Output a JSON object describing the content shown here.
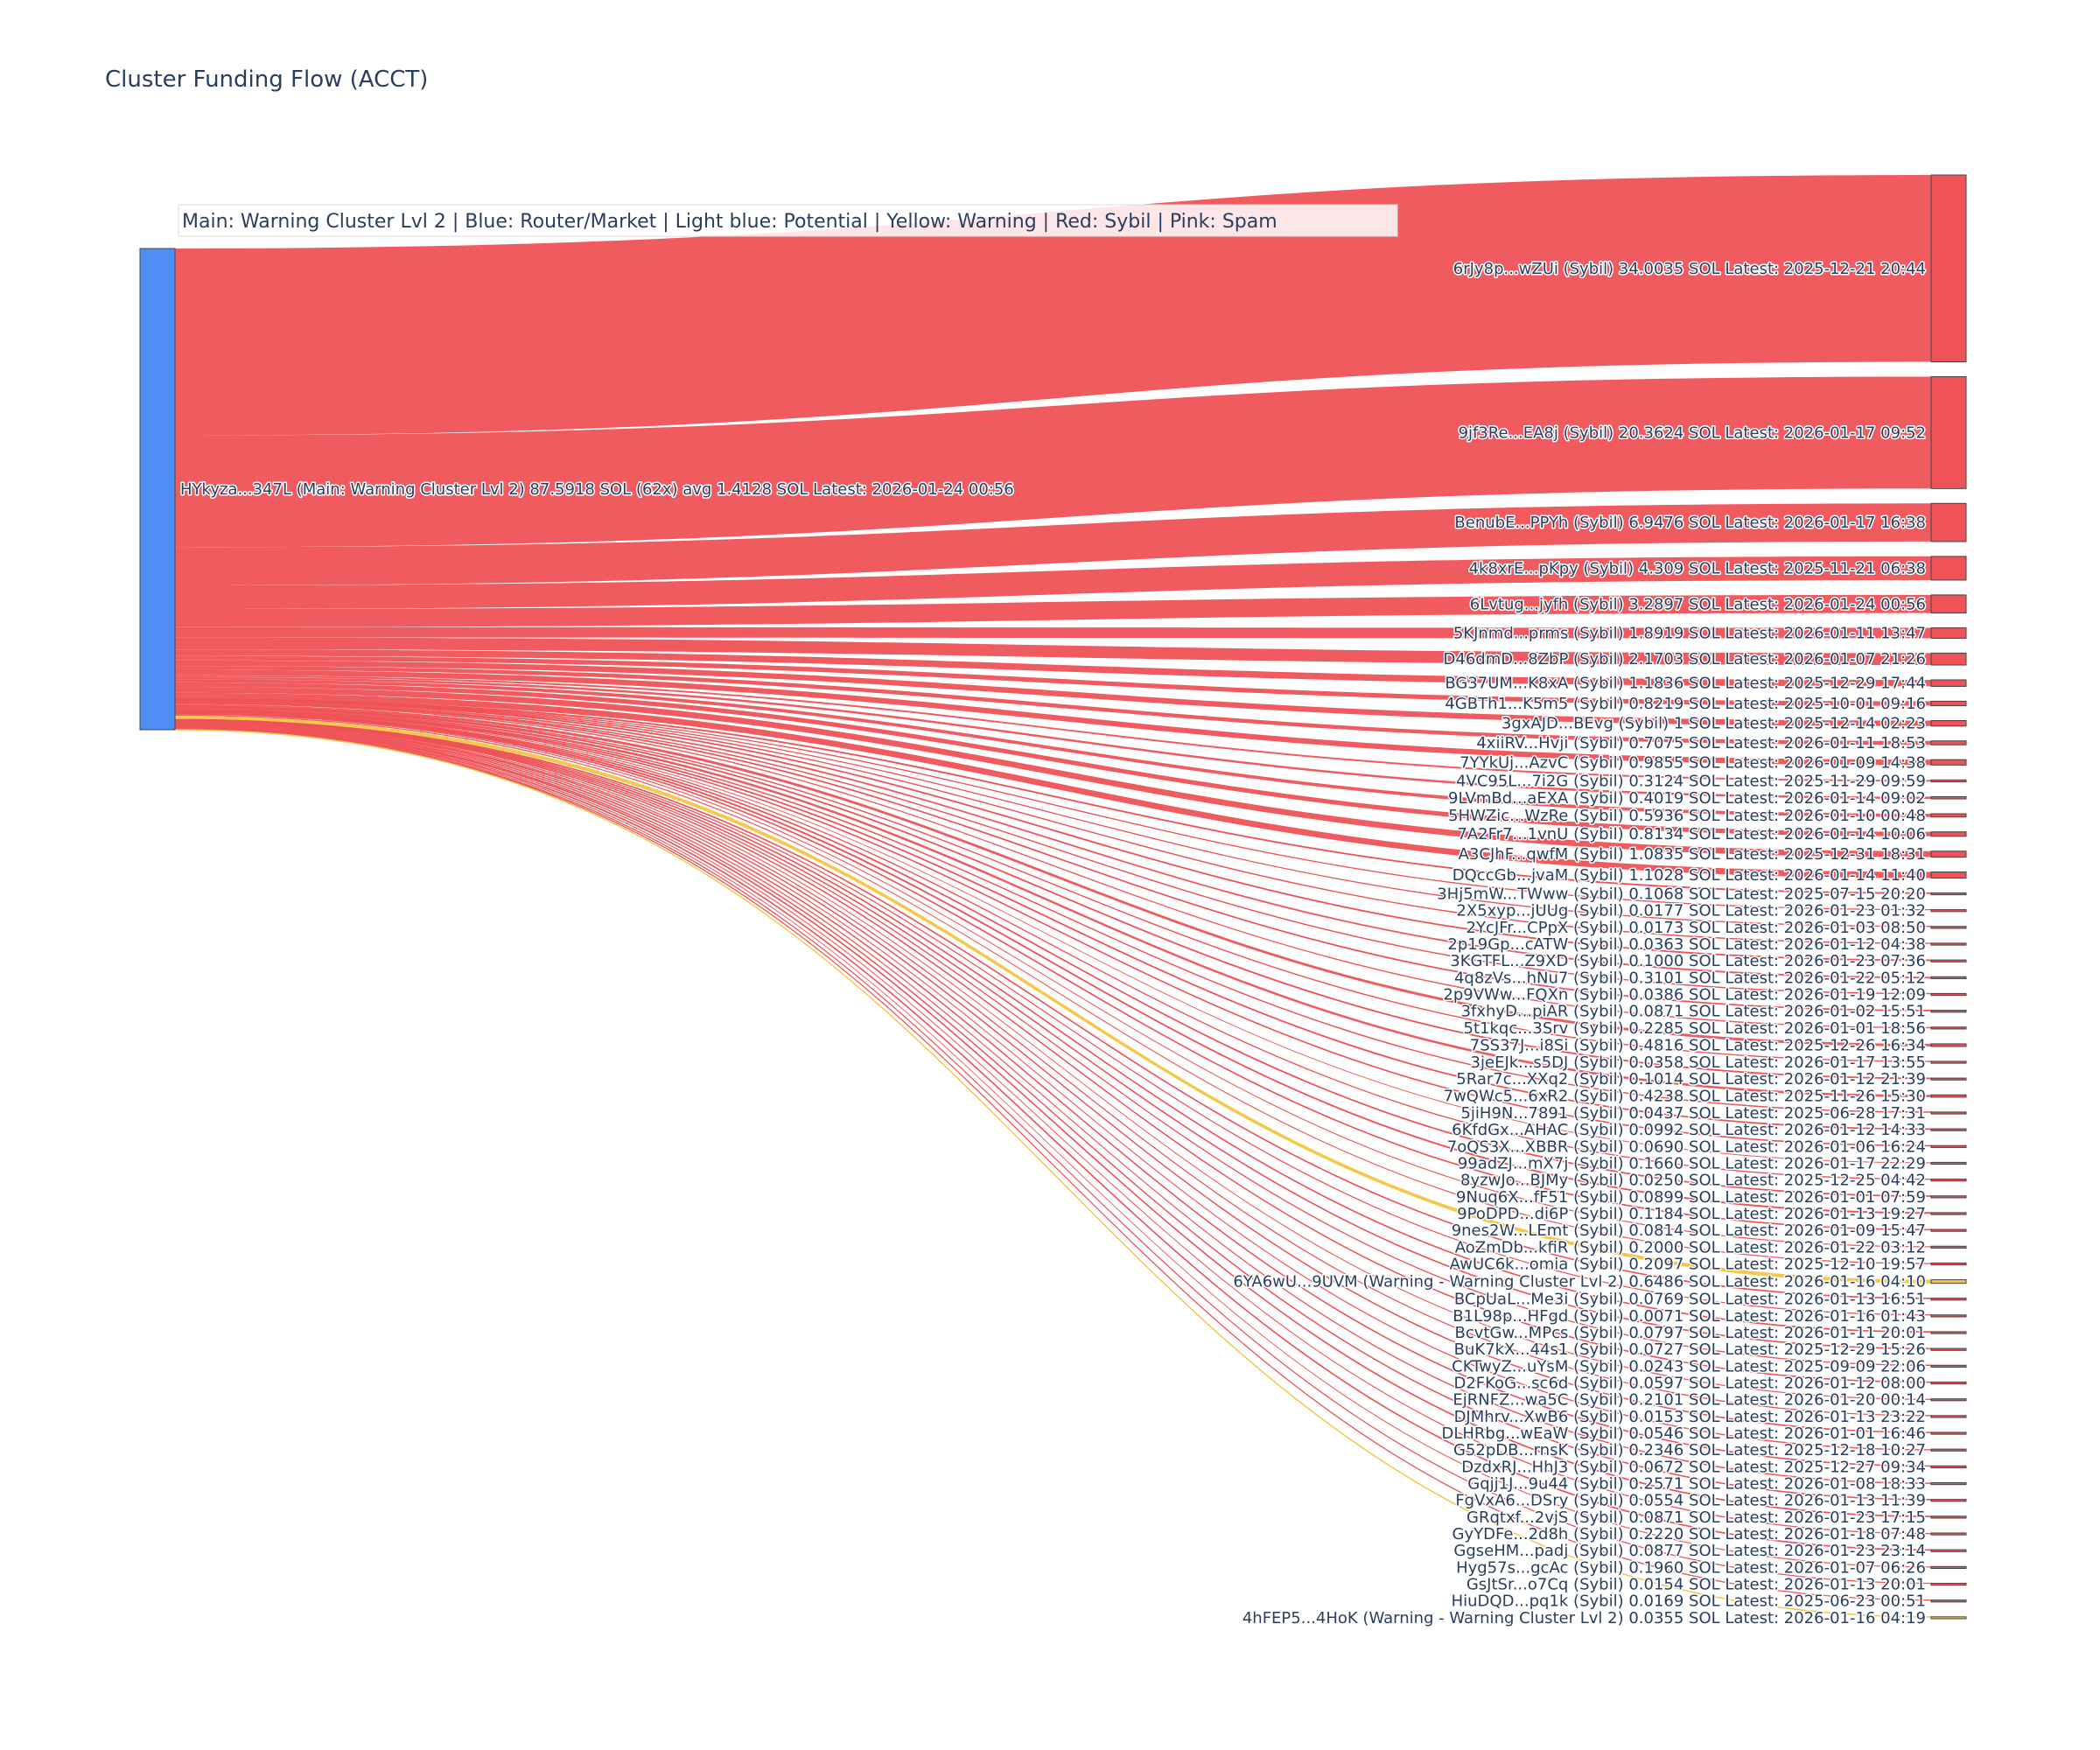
{
  "chart_data": {
    "type": "sankey",
    "title": "Cluster Funding Flow (ACCT)",
    "legend_annotation": "Main: Warning Cluster Lvl 2  |  Blue: Router/Market | Light blue: Potential | Yellow: Warning | Red: Sybil | Pink: Spam",
    "colors": {
      "source_node": "#4f8ff5",
      "sybil": "#ef5257",
      "warning": "#f4c542",
      "node_outline": "#444444",
      "text": "#2a3f5f"
    },
    "source": {
      "label": "HYkyza...347L (Main: Warning Cluster Lvl 2) 87.5918 SOL (62x) avg 1.4128 SOL Latest: 2026-01-24 00:56",
      "total": 87.5918
    },
    "targets": [
      {
        "label": "6rJy8p...wZUi (Sybil) 34.0035 SOL Latest: 2025-12-21 20:44",
        "value": 34.0035,
        "category": "sybil"
      },
      {
        "label": "9jf3Re...EA8j (Sybil) 20.3624 SOL Latest: 2026-01-17 09:52",
        "value": 20.3624,
        "category": "sybil"
      },
      {
        "label": "BenubE...PPYh (Sybil) 6.9476 SOL Latest: 2026-01-17 16:38",
        "value": 6.9476,
        "category": "sybil"
      },
      {
        "label": "4k8xrE...pKpy (Sybil) 4.309 SOL Latest: 2025-11-21 06:38",
        "value": 4.309,
        "category": "sybil"
      },
      {
        "label": "6Lvtug...jyfh (Sybil) 3.2897 SOL Latest: 2026-01-24 00:56",
        "value": 3.2897,
        "category": "sybil"
      },
      {
        "label": "5KJnmd...prms (Sybil) 1.8919 SOL Latest: 2026-01-11 13:47",
        "value": 1.8919,
        "category": "sybil"
      },
      {
        "label": "D46dmD...8ZbP (Sybil) 2.1703 SOL Latest: 2026-01-07 21:26",
        "value": 2.1703,
        "category": "sybil"
      },
      {
        "label": "BG37UM...K8xA (Sybil) 1.1836 SOL Latest: 2025-12-29 17:44",
        "value": 1.1836,
        "category": "sybil"
      },
      {
        "label": "4GBTh1...K5m5 (Sybil) 0.8219 SOL Latest: 2025-10-01 09:16",
        "value": 0.8219,
        "category": "sybil"
      },
      {
        "label": "3gxAJD...BEvg (Sybil) 1 SOL Latest: 2025-12-14 02:23",
        "value": 1.0,
        "category": "sybil"
      },
      {
        "label": "4xiiRV...Hvji (Sybil) 0.7075 SOL Latest: 2026-01-11 18:53",
        "value": 0.7075,
        "category": "sybil"
      },
      {
        "label": "7YYkUj...AzvC (Sybil) 0.9855 SOL Latest: 2026-01-09 14:38",
        "value": 0.9855,
        "category": "sybil"
      },
      {
        "label": "4VC95L...7i2G (Sybil) 0.3124 SOL Latest: 2025-11-29 09:59",
        "value": 0.3124,
        "category": "sybil"
      },
      {
        "label": "9LVmBd...aEXA (Sybil) 0.4019 SOL Latest: 2026-01-14 09:02",
        "value": 0.4019,
        "category": "sybil"
      },
      {
        "label": "5HWZic...WzRe (Sybil) 0.5936 SOL Latest: 2026-01-10 00:48",
        "value": 0.5936,
        "category": "sybil"
      },
      {
        "label": "7A2Fr7...1vnU (Sybil) 0.8134 SOL Latest: 2026-01-14 10:06",
        "value": 0.8134,
        "category": "sybil"
      },
      {
        "label": "A3CJhF...qwfM (Sybil) 1.0835 SOL Latest: 2025-12-31 18:31",
        "value": 1.0835,
        "category": "sybil"
      },
      {
        "label": "DQccGb...jvaM (Sybil) 1.1028 SOL Latest: 2026-01-14 11:40",
        "value": 1.1028,
        "category": "sybil"
      },
      {
        "label": "3Hj5mW...TWww (Sybil) 0.1068 SOL Latest: 2025-07-15 20:20",
        "value": 0.1068,
        "category": "sybil"
      },
      {
        "label": "2X5xyp...jUUg (Sybil) 0.0177 SOL Latest: 2026-01-23 01:32",
        "value": 0.0177,
        "category": "sybil"
      },
      {
        "label": "2YcJFr...CPpX (Sybil) 0.0173 SOL Latest: 2026-01-03 08:50",
        "value": 0.0173,
        "category": "sybil"
      },
      {
        "label": "2p19Gp...cATW (Sybil) 0.0363 SOL Latest: 2026-01-12 04:38",
        "value": 0.0363,
        "category": "sybil"
      },
      {
        "label": "3KGTFL...Z9XD (Sybil) 0.1000 SOL Latest: 2026-01-23 07:36",
        "value": 0.1,
        "category": "sybil"
      },
      {
        "label": "4q8zVs...hNu7 (Sybil) 0.3101 SOL Latest: 2026-01-22 05:12",
        "value": 0.3101,
        "category": "sybil"
      },
      {
        "label": "2p9VWw...FQXn (Sybil) 0.0386 SOL Latest: 2026-01-19 12:09",
        "value": 0.0386,
        "category": "sybil"
      },
      {
        "label": "3fxhyD...piAR (Sybil) 0.0871 SOL Latest: 2026-01-02 15:51",
        "value": 0.0871,
        "category": "sybil"
      },
      {
        "label": "5t1kqc...3Srv (Sybil) 0.2285 SOL Latest: 2026-01-01 18:56",
        "value": 0.2285,
        "category": "sybil"
      },
      {
        "label": "7SS37J...i8Si (Sybil) 0.4816 SOL Latest: 2025-12-26 16:34",
        "value": 0.4816,
        "category": "sybil"
      },
      {
        "label": "3jeEJk...s5DJ (Sybil) 0.0358 SOL Latest: 2026-01-17 13:55",
        "value": 0.0358,
        "category": "sybil"
      },
      {
        "label": "5Rar7c...XXq2 (Sybil) 0.1014 SOL Latest: 2026-01-12 21:39",
        "value": 0.1014,
        "category": "sybil"
      },
      {
        "label": "7wQWc5...6xR2 (Sybil) 0.4238 SOL Latest: 2025-11-26 15:30",
        "value": 0.4238,
        "category": "sybil"
      },
      {
        "label": "5jiH9N...7891 (Sybil) 0.0437 SOL Latest: 2025-06-28 17:31",
        "value": 0.0437,
        "category": "sybil"
      },
      {
        "label": "6KfdGx...AHAC (Sybil) 0.0992 SOL Latest: 2026-01-12 14:33",
        "value": 0.0992,
        "category": "sybil"
      },
      {
        "label": "7oQS3X...XBBR (Sybil) 0.0690 SOL Latest: 2026-01-06 16:24",
        "value": 0.069,
        "category": "sybil"
      },
      {
        "label": "99adZJ...mX7j (Sybil) 0.1660 SOL Latest: 2026-01-17 22:29",
        "value": 0.166,
        "category": "sybil"
      },
      {
        "label": "8yzwJo...BJMy (Sybil) 0.0250 SOL Latest: 2025-12-25 04:42",
        "value": 0.025,
        "category": "sybil"
      },
      {
        "label": "9Nuq6X...fF51 (Sybil) 0.0899 SOL Latest: 2026-01-01 07:59",
        "value": 0.0899,
        "category": "sybil"
      },
      {
        "label": "9PoDPD...di6P (Sybil) 0.1184 SOL Latest: 2026-01-13 19:27",
        "value": 0.1184,
        "category": "sybil"
      },
      {
        "label": "9nes2W...LEmt (Sybil) 0.0814 SOL Latest: 2026-01-09 15:47",
        "value": 0.0814,
        "category": "sybil"
      },
      {
        "label": "AoZmDb...kfiR (Sybil) 0.2000 SOL Latest: 2026-01-22 03:12",
        "value": 0.2,
        "category": "sybil"
      },
      {
        "label": "AwUC6k...omia (Sybil) 0.2097 SOL Latest: 2025-12-10 19:57",
        "value": 0.2097,
        "category": "sybil"
      },
      {
        "label": "6YA6wU...9UVM (Warning - Warning Cluster Lvl 2) 0.6486 SOL Latest: 2026-01-16 04:10",
        "value": 0.6486,
        "category": "warning"
      },
      {
        "label": "BCpUaL...Me3i (Sybil) 0.0769 SOL Latest: 2026-01-13 16:51",
        "value": 0.0769,
        "category": "sybil"
      },
      {
        "label": "B1L98p...HFgd (Sybil) 0.0071 SOL Latest: 2026-01-16 01:43",
        "value": 0.0071,
        "category": "sybil"
      },
      {
        "label": "BcvtGw...MPcs (Sybil) 0.0797 SOL Latest: 2026-01-11 20:01",
        "value": 0.0797,
        "category": "sybil"
      },
      {
        "label": "BuK7kX...44s1 (Sybil) 0.0727 SOL Latest: 2025-12-29 15:26",
        "value": 0.0727,
        "category": "sybil"
      },
      {
        "label": "CKTwyZ...uYsM (Sybil) 0.0243 SOL Latest: 2025-09-09 22:06",
        "value": 0.0243,
        "category": "sybil"
      },
      {
        "label": "D2FKoG...sc6d (Sybil) 0.0597 SOL Latest: 2026-01-12 08:00",
        "value": 0.0597,
        "category": "sybil"
      },
      {
        "label": "EjRNFZ...wa5C (Sybil) 0.2101 SOL Latest: 2026-01-20 00:14",
        "value": 0.2101,
        "category": "sybil"
      },
      {
        "label": "DJMhrv...XwB6 (Sybil) 0.0153 SOL Latest: 2026-01-13 23:22",
        "value": 0.0153,
        "category": "sybil"
      },
      {
        "label": "DLHRbg...wEaW (Sybil) 0.0546 SOL Latest: 2026-01-01 16:46",
        "value": 0.0546,
        "category": "sybil"
      },
      {
        "label": "G52pDB...rnsK (Sybil) 0.2346 SOL Latest: 2025-12-18 10:27",
        "value": 0.2346,
        "category": "sybil"
      },
      {
        "label": "DzdxRJ...HhJ3 (Sybil) 0.0672 SOL Latest: 2025-12-27 09:34",
        "value": 0.0672,
        "category": "sybil"
      },
      {
        "label": "Gqjj1J...9u44 (Sybil) 0.2571 SOL Latest: 2026-01-08 18:33",
        "value": 0.2571,
        "category": "sybil"
      },
      {
        "label": "FgVxA6...DSry (Sybil) 0.0554 SOL Latest: 2026-01-13 11:39",
        "value": 0.0554,
        "category": "sybil"
      },
      {
        "label": "GRqtxf...2vjS (Sybil) 0.0871 SOL Latest: 2026-01-23 17:15",
        "value": 0.0871,
        "category": "sybil"
      },
      {
        "label": "GyYDFe...2d8h (Sybil) 0.2220 SOL Latest: 2026-01-18 07:48",
        "value": 0.222,
        "category": "sybil"
      },
      {
        "label": "GgseHM...padj (Sybil) 0.0877 SOL Latest: 2026-01-23 23:14",
        "value": 0.0877,
        "category": "sybil"
      },
      {
        "label": "Hyg57s...gcAc (Sybil) 0.1960 SOL Latest: 2026-01-07 06:26",
        "value": 0.196,
        "category": "sybil"
      },
      {
        "label": "GsJtSr...o7Cq (Sybil) 0.0154 SOL Latest: 2026-01-13 20:01",
        "value": 0.0154,
        "category": "sybil"
      },
      {
        "label": "HiuDQD...pq1k (Sybil) 0.0169 SOL Latest: 2025-06-23 00:51",
        "value": 0.0169,
        "category": "sybil"
      },
      {
        "label": "4hFEP5...4HoK (Warning - Warning Cluster Lvl 2) 0.0355 SOL Latest: 2026-01-16 04:19",
        "value": 0.0355,
        "category": "warning"
      }
    ]
  }
}
